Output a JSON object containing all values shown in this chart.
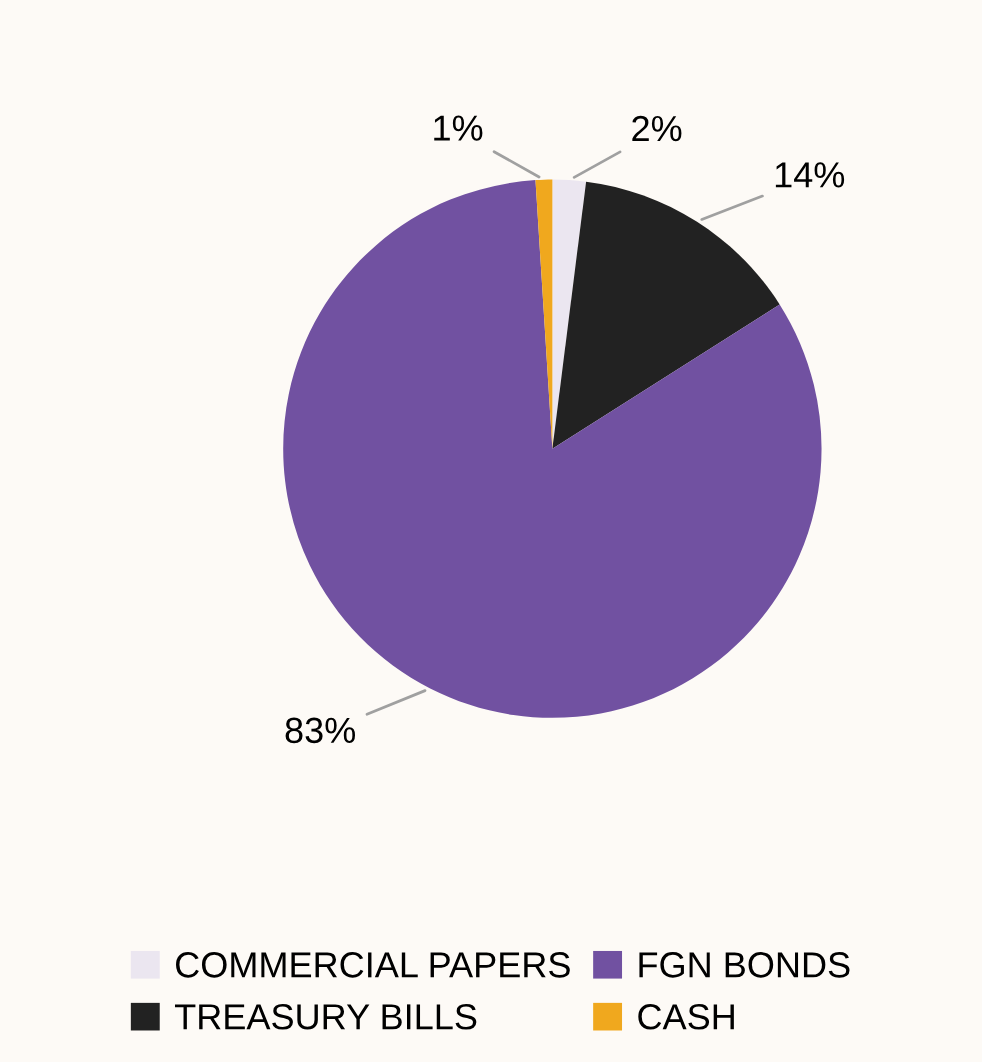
{
  "chart_data": {
    "type": "pie",
    "categories": [
      "COMMERCIAL PAPERS",
      "TREASURY BILLS",
      "FGN BONDS",
      "CASH"
    ],
    "values": [
      2,
      14,
      83,
      1
    ],
    "colors": [
      "#ebe6f0",
      "#222222",
      "#7151a1",
      "#f0a81e"
    ],
    "value_labels": [
      "2%",
      "14%",
      "83%",
      "1%"
    ],
    "legend": "bottom"
  }
}
